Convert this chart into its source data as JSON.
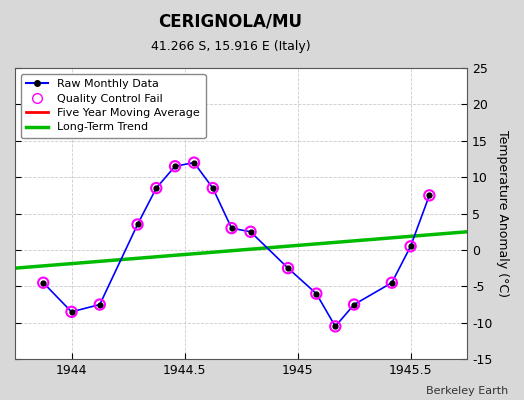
{
  "title": "CERIGNOLA/MU",
  "subtitle": "41.266 S, 15.916 E (Italy)",
  "ylabel": "Temperature Anomaly (°C)",
  "watermark": "Berkeley Earth",
  "xlim": [
    1943.75,
    1945.75
  ],
  "ylim": [
    -15,
    25
  ],
  "yticks": [
    -15,
    -10,
    -5,
    0,
    5,
    10,
    15,
    20,
    25
  ],
  "xticks": [
    1944,
    1944.5,
    1945,
    1945.5
  ],
  "raw_x": [
    1943.875,
    1944.0,
    1944.125,
    1944.292,
    1944.375,
    1944.458,
    1944.542,
    1944.625,
    1944.708,
    1944.792,
    1944.958,
    1945.083,
    1945.167,
    1945.25,
    1945.417,
    1945.5,
    1945.583
  ],
  "raw_y": [
    -4.5,
    -8.5,
    -7.5,
    3.5,
    8.5,
    11.5,
    12.0,
    8.5,
    3.0,
    2.5,
    -2.5,
    -6.0,
    -10.5,
    -7.5,
    -4.5,
    0.5,
    7.5
  ],
  "qc_x": [
    1943.875,
    1944.0,
    1944.125,
    1944.292,
    1944.375,
    1944.458,
    1944.542,
    1944.625,
    1944.708,
    1944.792,
    1944.958,
    1945.083,
    1945.167,
    1945.25,
    1945.417,
    1945.5,
    1945.583
  ],
  "qc_y": [
    -4.5,
    -8.5,
    -7.5,
    3.5,
    8.5,
    11.5,
    12.0,
    8.5,
    3.0,
    2.5,
    -2.5,
    -6.0,
    -10.5,
    -7.5,
    -4.5,
    0.5,
    7.5
  ],
  "trend_x": [
    1943.75,
    1945.75
  ],
  "trend_y": [
    -2.5,
    2.5
  ],
  "raw_line_color": "#0000ff",
  "raw_marker_color": "#000000",
  "qc_marker_color": "#ff00ff",
  "trend_color": "#00bb00",
  "movavg_color": "#ff0000",
  "background_color": "#d8d8d8",
  "plot_bg_color": "#ffffff",
  "title_fontsize": 12,
  "subtitle_fontsize": 9,
  "label_fontsize": 9,
  "tick_fontsize": 9,
  "legend_fontsize": 8,
  "watermark_fontsize": 8
}
